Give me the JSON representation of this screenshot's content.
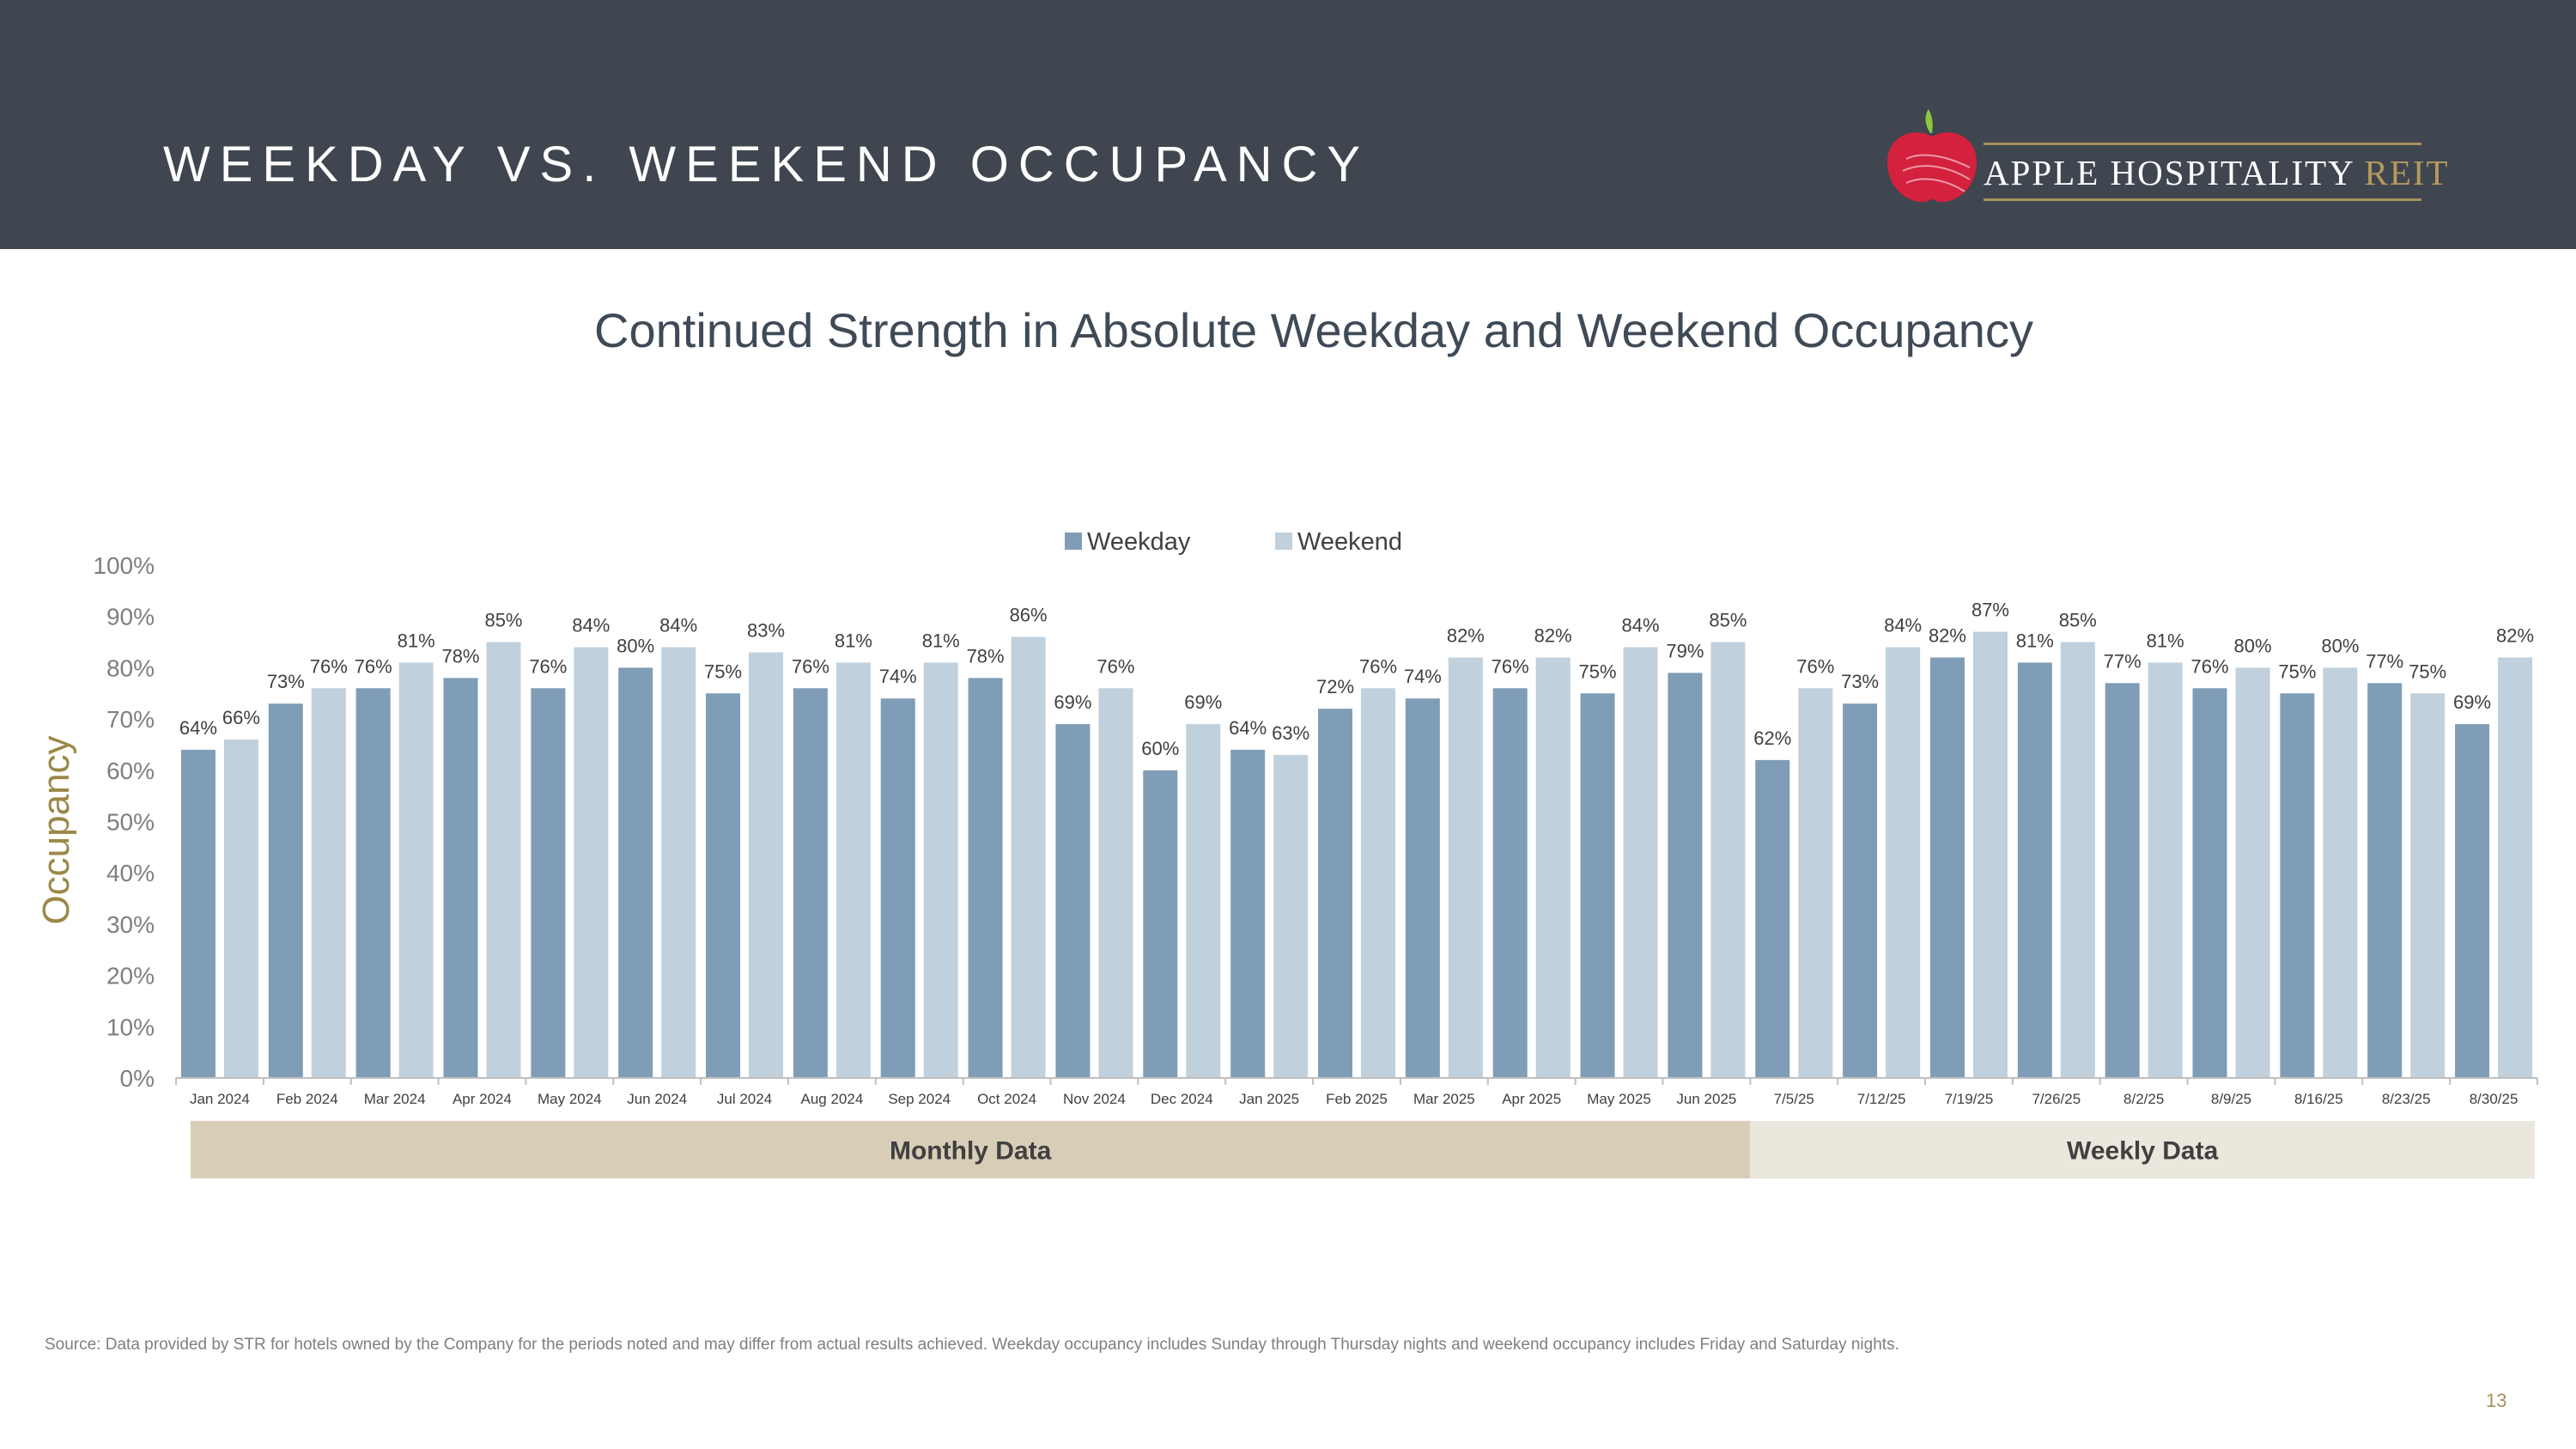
{
  "header": {
    "title": "WEEKDAY VS. WEEKEND OCCUPANCY",
    "logo_text_main": "APPLE HOSPITALITY",
    "logo_text_accent": "REIT"
  },
  "subtitle": "Continued Strength in Absolute Weekday and Weekend Occupancy",
  "footer": {
    "source": "Source:  Data provided by STR for hotels owned by the Company for the periods noted and may differ from actual results achieved. Weekday occupancy includes Sunday through Thursday nights and weekend occupancy includes Friday and Saturday nights.",
    "page_number": "13"
  },
  "colors": {
    "header_bg": "#3f464f",
    "weekday": "#7f9db6",
    "weekend": "#c0d0dc",
    "monthly_band": "#d8cdb6",
    "weekly_band": "#ebe7dc",
    "axis_title": "#9b8846",
    "logo_red": "#d4213d",
    "logo_leaf": "#8dc63f",
    "logo_gold": "#a8915a"
  },
  "chart_data": {
    "type": "bar",
    "title": "Continued Strength in Absolute Weekday and Weekend Occupancy",
    "xlabel": "",
    "ylabel": "Occupancy",
    "ylim": [
      0,
      100
    ],
    "yticks": [
      "0%",
      "10%",
      "20%",
      "30%",
      "40%",
      "50%",
      "60%",
      "70%",
      "80%",
      "90%",
      "100%"
    ],
    "legend_position": "top-center",
    "categories": [
      "Jan 2024",
      "Feb 2024",
      "Mar 2024",
      "Apr 2024",
      "May 2024",
      "Jun 2024",
      "Jul 2024",
      "Aug 2024",
      "Sep 2024",
      "Oct 2024",
      "Nov 2024",
      "Dec 2024",
      "Jan 2025",
      "Feb 2025",
      "Mar 2025",
      "Apr 2025",
      "May 2025",
      "Jun 2025",
      "7/5/25",
      "7/12/25",
      "7/19/25",
      "7/26/25",
      "8/2/25",
      "8/9/25",
      "8/16/25",
      "8/23/25",
      "8/30/25"
    ],
    "series": [
      {
        "name": "Weekday",
        "values": [
          64,
          73,
          76,
          78,
          76,
          80,
          75,
          76,
          74,
          78,
          69,
          60,
          64,
          72,
          74,
          76,
          75,
          79,
          62,
          73,
          82,
          81,
          77,
          76,
          75,
          77,
          69
        ]
      },
      {
        "name": "Weekend",
        "values": [
          66,
          76,
          81,
          85,
          84,
          84,
          83,
          81,
          81,
          86,
          76,
          69,
          63,
          76,
          82,
          82,
          84,
          85,
          76,
          84,
          87,
          85,
          81,
          80,
          80,
          75,
          82
        ]
      }
    ],
    "groups": [
      {
        "label": "Monthly Data",
        "start_index": 0,
        "end_index": 17
      },
      {
        "label": "Weekly Data",
        "start_index": 18,
        "end_index": 26
      }
    ]
  }
}
